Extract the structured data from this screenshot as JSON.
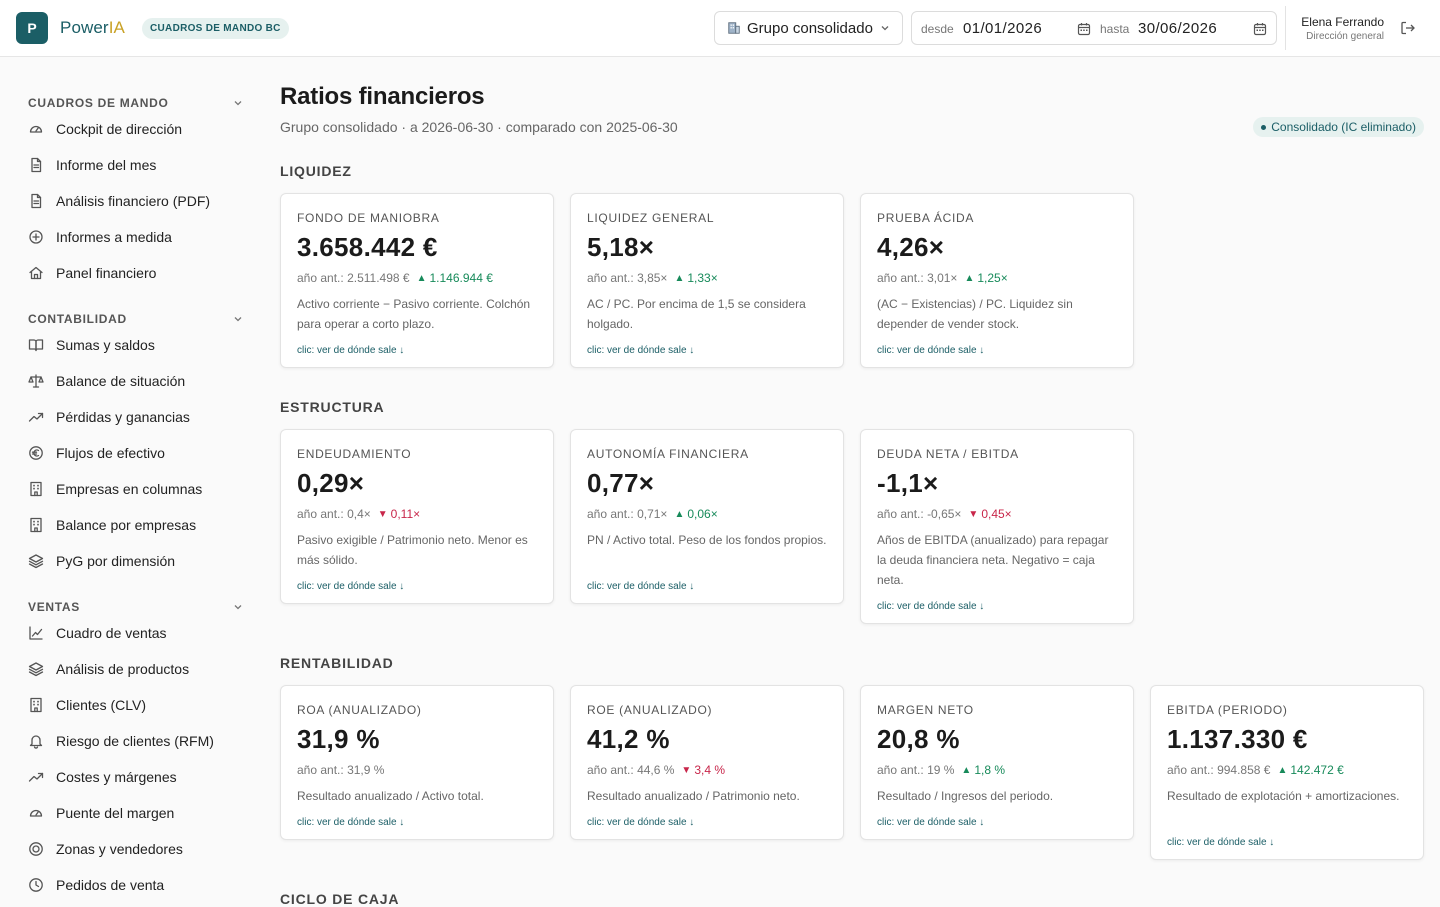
{
  "app": {
    "logo_letter": "P",
    "name_main": "Power",
    "name_accent": "IA",
    "module_badge": "CUADROS DE MANDO BC"
  },
  "header": {
    "group_select": "Grupo consolidado",
    "date_from_label": "desde",
    "date_from": "01/01/2026",
    "date_to_label": "hasta",
    "date_to": "30/06/2026",
    "user_name": "Elena Ferrando",
    "user_role": "Dirección general"
  },
  "sidebar": {
    "sections": [
      {
        "title": "CUADROS DE MANDO",
        "items": [
          {
            "label": "Cockpit de dirección",
            "icon": "gauge-icon"
          },
          {
            "label": "Informe del mes",
            "icon": "document-icon"
          },
          {
            "label": "Análisis financiero (PDF)",
            "icon": "document-icon"
          },
          {
            "label": "Informes a medida",
            "icon": "plus-circle-icon"
          },
          {
            "label": "Panel financiero",
            "icon": "home-icon"
          }
        ]
      },
      {
        "title": "CONTABILIDAD",
        "items": [
          {
            "label": "Sumas y saldos",
            "icon": "book-icon"
          },
          {
            "label": "Balance de situación",
            "icon": "scale-icon"
          },
          {
            "label": "Pérdidas y ganancias",
            "icon": "trend-icon"
          },
          {
            "label": "Flujos de efectivo",
            "icon": "euro-icon"
          },
          {
            "label": "Empresas en columnas",
            "icon": "building-icon"
          },
          {
            "label": "Balance por empresas",
            "icon": "building-icon"
          },
          {
            "label": "PyG por dimensión",
            "icon": "layers-icon"
          }
        ]
      },
      {
        "title": "VENTAS",
        "items": [
          {
            "label": "Cuadro de ventas",
            "icon": "chart-line-icon"
          },
          {
            "label": "Análisis de productos",
            "icon": "layers-icon"
          },
          {
            "label": "Clientes (CLV)",
            "icon": "building-icon"
          },
          {
            "label": "Riesgo de clientes (RFM)",
            "icon": "bell-icon"
          },
          {
            "label": "Costes y márgenes",
            "icon": "trend-icon"
          },
          {
            "label": "Puente del margen",
            "icon": "gauge-icon"
          },
          {
            "label": "Zonas y vendedores",
            "icon": "target-icon"
          },
          {
            "label": "Pedidos de venta",
            "icon": "clock-icon"
          }
        ]
      }
    ]
  },
  "main": {
    "title": "Ratios financieros",
    "subtitle": "Grupo consolidado · a 2026-06-30 · comparado con 2025-06-30",
    "scope_badge": "Consolidado (IC eliminado)",
    "link_text": "clic: ver de dónde sale ↓",
    "prev_prefix": "año ant.:",
    "sections": [
      {
        "title": "LIQUIDEZ",
        "cards": [
          {
            "title": "FONDO DE MANIOBRA",
            "value": "3.658.442 €",
            "prev": "2.511.498 €",
            "delta": "1.146.944 €",
            "trend": "up",
            "desc": "Activo corriente − Pasivo corriente. Colchón para operar a corto plazo."
          },
          {
            "title": "LIQUIDEZ GENERAL",
            "value": "5,18×",
            "prev": "3,85×",
            "delta": "1,33×",
            "trend": "up",
            "desc": "AC / PC. Por encima de 1,5 se considera holgado."
          },
          {
            "title": "PRUEBA ÁCIDA",
            "value": "4,26×",
            "prev": "3,01×",
            "delta": "1,25×",
            "trend": "up",
            "desc": "(AC − Existencias) / PC. Liquidez sin depender de vender stock."
          }
        ]
      },
      {
        "title": "ESTRUCTURA",
        "cards": [
          {
            "title": "ENDEUDAMIENTO",
            "value": "0,29×",
            "prev": "0,4×",
            "delta": "0,11×",
            "trend": "down",
            "desc": "Pasivo exigible / Patrimonio neto. Menor es más sólido."
          },
          {
            "title": "AUTONOMÍA FINANCIERA",
            "value": "0,77×",
            "prev": "0,71×",
            "delta": "0,06×",
            "trend": "up",
            "desc": "PN / Activo total. Peso de los fondos propios."
          },
          {
            "title": "DEUDA NETA / EBITDA",
            "value": "-1,1×",
            "prev": "-0,65×",
            "delta": "0,45×",
            "trend": "down",
            "desc": "Años de EBITDA (anualizado) para repagar la deuda financiera neta. Negativo = caja neta."
          }
        ]
      },
      {
        "title": "RENTABILIDAD",
        "cards": [
          {
            "title": "ROA (ANUALIZADO)",
            "value": "31,9 %",
            "prev": "31,9 %",
            "delta": "",
            "trend": "none",
            "desc": "Resultado anualizado / Activo total."
          },
          {
            "title": "ROE (ANUALIZADO)",
            "value": "41,2 %",
            "prev": "44,6 %",
            "delta": "3,4 %",
            "trend": "down",
            "desc": "Resultado anualizado / Patrimonio neto."
          },
          {
            "title": "MARGEN NETO",
            "value": "20,8 %",
            "prev": "19 %",
            "delta": "1,8 %",
            "trend": "up",
            "desc": "Resultado / Ingresos del periodo."
          },
          {
            "title": "EBITDA (PERIODO)",
            "value": "1.137.330 €",
            "prev": "994.858 €",
            "delta": "142.472 €",
            "trend": "up",
            "desc": "Resultado de explotación + amortizaciones."
          }
        ]
      },
      {
        "title": "CICLO DE CAJA",
        "cards": []
      }
    ]
  },
  "colors": {
    "brand": "#1b5e66",
    "brand_accent": "#c9a227",
    "up": "#178a5a",
    "down": "#c8264a"
  }
}
